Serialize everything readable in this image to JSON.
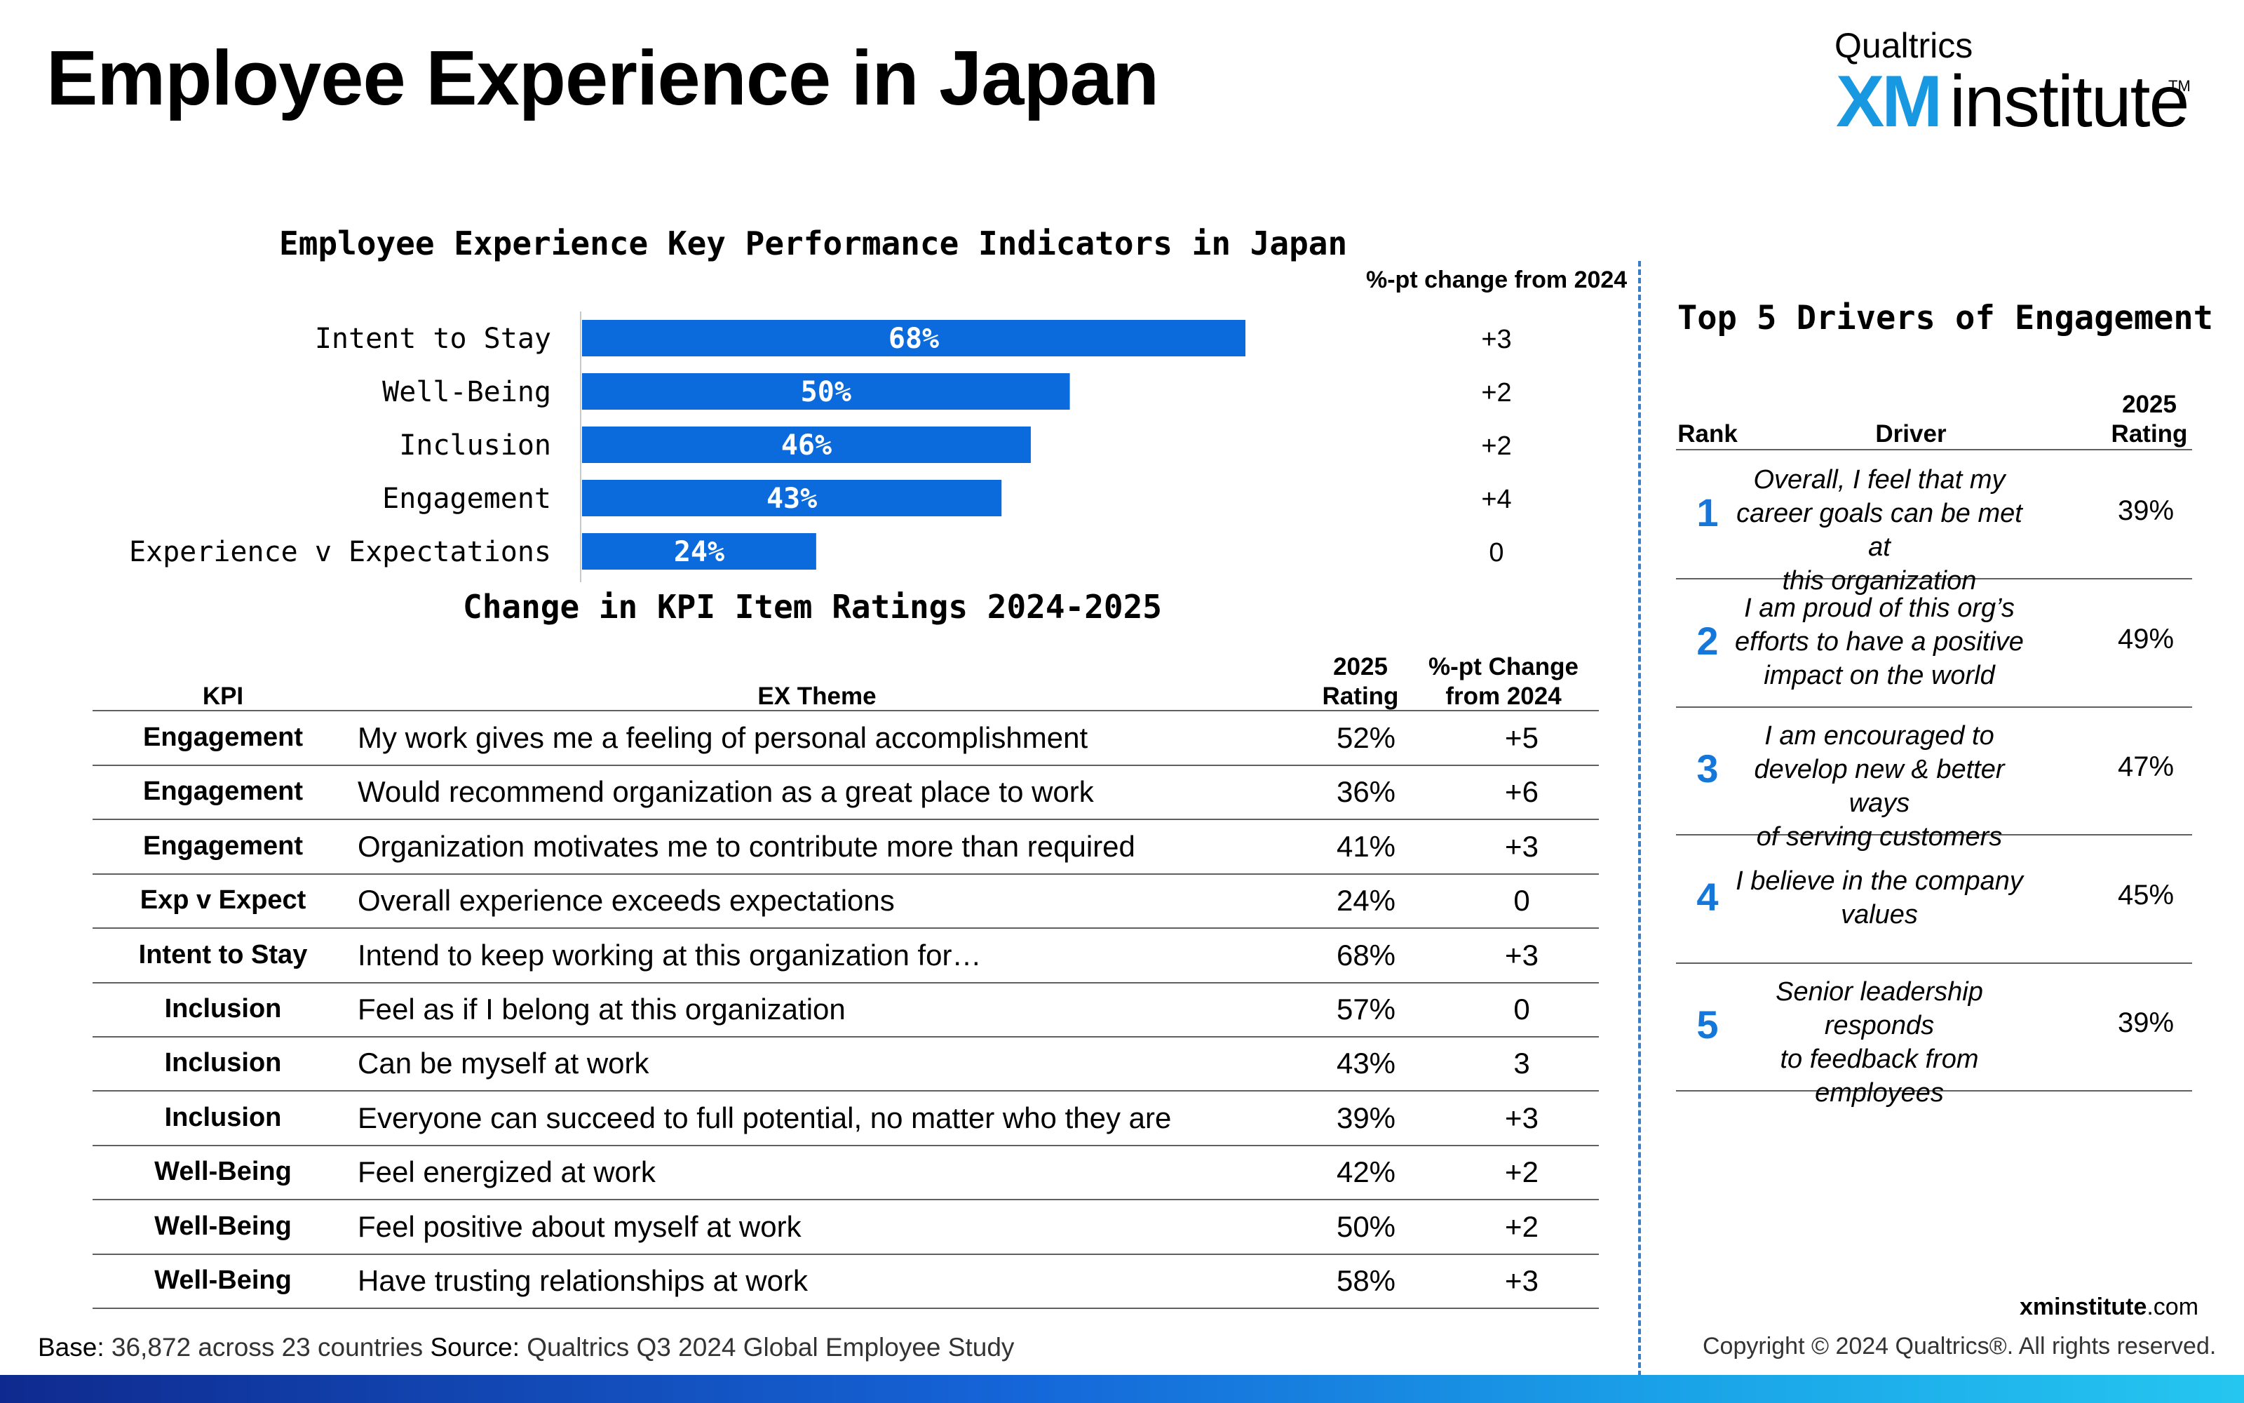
{
  "page": {
    "title": "Employee Experience in Japan",
    "logo": {
      "top": "Qualtrics",
      "xm": "XM",
      "institute": "institute",
      "tm": "TM"
    }
  },
  "chart_data": {
    "type": "bar",
    "orientation": "horizontal",
    "title": "Employee Experience Key Performance Indicators in Japan",
    "categories": [
      "Intent to Stay",
      "Well-Being",
      "Inclusion",
      "Engagement",
      "Experience v Expectations"
    ],
    "values": [
      68,
      50,
      46,
      43,
      24
    ],
    "value_labels": [
      "68%",
      "50%",
      "46%",
      "43%",
      "24%"
    ],
    "change_header": "%-pt change from 2024",
    "changes": [
      "+3",
      "+2",
      "+2",
      "+4",
      "0"
    ],
    "xlim": [
      0,
      100
    ],
    "bar_color": "#0b6bdc",
    "grid": false
  },
  "kpi_table": {
    "title": "Change in KPI Item Ratings 2024-2025",
    "headers": {
      "kpi": "KPI",
      "theme": "EX Theme",
      "rating_l1": "2025",
      "rating_l2": "Rating",
      "change_l1": "%-pt Change",
      "change_l2": "from 2024"
    },
    "rows": [
      {
        "kpi": "Engagement",
        "theme": "My work gives me a feeling of personal accomplishment",
        "rating": "52%",
        "change": "+5"
      },
      {
        "kpi": "Engagement",
        "theme": "Would recommend organization as a great place to work",
        "rating": "36%",
        "change": "+6"
      },
      {
        "kpi": "Engagement",
        "theme": "Organization motivates me to contribute more than required",
        "rating": "41%",
        "change": "+3"
      },
      {
        "kpi": "Exp v Expect",
        "theme": "Overall experience exceeds expectations",
        "rating": "24%",
        "change": "0"
      },
      {
        "kpi": "Intent to Stay",
        "theme": "Intend to keep working at this organization for…",
        "rating": "68%",
        "change": "+3"
      },
      {
        "kpi": "Inclusion",
        "theme": "Feel as if I belong at this organization",
        "rating": "57%",
        "change": "0"
      },
      {
        "kpi": "Inclusion",
        "theme": "Can be myself at work",
        "rating": "43%",
        "change": "3"
      },
      {
        "kpi": "Inclusion",
        "theme": "Everyone can succeed to full potential, no matter who they are",
        "rating": "39%",
        "change": "+3"
      },
      {
        "kpi": "Well-Being",
        "theme": "Feel energized at work",
        "rating": "42%",
        "change": "+2"
      },
      {
        "kpi": "Well-Being",
        "theme": "Feel positive about myself at work",
        "rating": "50%",
        "change": "+2"
      },
      {
        "kpi": "Well-Being",
        "theme": "Have trusting relationships at work",
        "rating": "58%",
        "change": "+3"
      }
    ]
  },
  "drivers": {
    "title": "Top 5 Drivers of Engagement",
    "headers": {
      "rank": "Rank",
      "driver": "Driver",
      "rating_l1": "2025",
      "rating_l2": "Rating"
    },
    "rows": [
      {
        "rank": "1",
        "lines": [
          "Overall, I feel that my",
          "career goals can be met at",
          "this organization"
        ],
        "rating": "39%"
      },
      {
        "rank": "2",
        "lines": [
          "I am proud of this org’s",
          "efforts to have a positive",
          "impact on the world"
        ],
        "rating": "49%"
      },
      {
        "rank": "3",
        "lines": [
          "I am encouraged to",
          "develop new & better ways",
          "of serving customers"
        ],
        "rating": "47%"
      },
      {
        "rank": "4",
        "lines": [
          "I believe in the company",
          "values"
        ],
        "rating": "45%"
      },
      {
        "rank": "5",
        "lines": [
          "Senior leadership responds",
          "to feedback from",
          "employees"
        ],
        "rating": "39%"
      }
    ]
  },
  "footer": {
    "base_label": "Base:",
    "base_text": " 36,872 across 23 countries ",
    "source_label": "Source:",
    "source_text": " Qualtrics Q3 2024 Global Employee Study",
    "url_bold": "xminstitute",
    "url_rest": ".com",
    "copyright": "Copyright © 2024 Qualtrics®. All rights reserved."
  },
  "colors": {
    "accent": "#0b6bdc",
    "rank": "#1577d9",
    "logo_xm": "#1798e0"
  }
}
